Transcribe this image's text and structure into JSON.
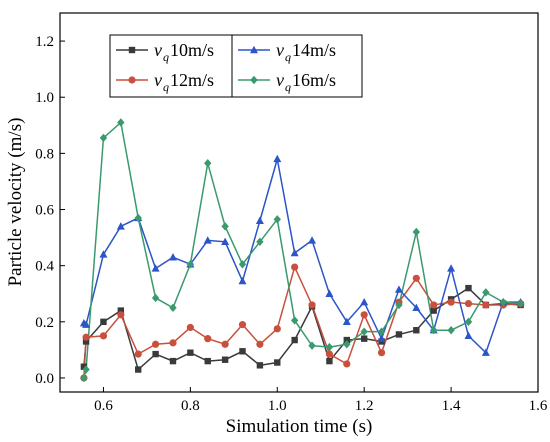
{
  "chart_data": {
    "type": "line",
    "xlabel": "Simulation time (s)",
    "ylabel": "Particle velocity (m/s)",
    "xlim": [
      0.5,
      1.6
    ],
    "ylim": [
      -0.05,
      1.3
    ],
    "xticks": [
      "0.6",
      "0.8",
      "1.0",
      "1.2",
      "1.4",
      "1.6"
    ],
    "yticks": [
      "0.0",
      "0.2",
      "0.4",
      "0.6",
      "0.8",
      "1.0",
      "1.2"
    ],
    "x": [
      0.555,
      0.56,
      0.6,
      0.64,
      0.68,
      0.72,
      0.76,
      0.8,
      0.84,
      0.88,
      0.92,
      0.96,
      1.0,
      1.04,
      1.08,
      1.12,
      1.16,
      1.2,
      1.24,
      1.28,
      1.32,
      1.36,
      1.4,
      1.44,
      1.48,
      1.52,
      1.56
    ],
    "series": [
      {
        "legend_prefix": "v",
        "legend_sub": "q",
        "legend_suffix": "10m/s",
        "color": "#3a3a3a",
        "marker": "square",
        "values": [
          0.04,
          0.13,
          0.2,
          0.24,
          0.03,
          0.085,
          0.06,
          0.09,
          0.06,
          0.065,
          0.095,
          0.045,
          0.055,
          0.135,
          0.255,
          0.06,
          0.135,
          0.14,
          0.13,
          0.155,
          0.17,
          0.24,
          0.28,
          0.32,
          0.26,
          0.265,
          0.26
        ]
      },
      {
        "legend_prefix": "v",
        "legend_sub": "q",
        "legend_suffix": "12m/s",
        "color": "#c8503c",
        "marker": "circle",
        "values": [
          0.0,
          0.145,
          0.15,
          0.225,
          0.085,
          0.12,
          0.125,
          0.18,
          0.14,
          0.12,
          0.19,
          0.12,
          0.175,
          0.395,
          0.26,
          0.085,
          0.05,
          0.225,
          0.09,
          0.27,
          0.355,
          0.26,
          0.27,
          0.265,
          0.26,
          0.26,
          0.265
        ]
      },
      {
        "legend_prefix": "v",
        "legend_sub": "q",
        "legend_suffix": "14m/s",
        "color": "#2b55c8",
        "marker": "triangle",
        "values": [
          0.195,
          0.19,
          0.44,
          0.54,
          0.57,
          0.39,
          0.43,
          0.405,
          0.49,
          0.485,
          0.345,
          0.56,
          0.78,
          0.445,
          0.49,
          0.3,
          0.2,
          0.27,
          0.14,
          0.315,
          0.25,
          0.17,
          0.39,
          0.15,
          0.09,
          0.27,
          0.27
        ]
      },
      {
        "legend_prefix": "v",
        "legend_sub": "q",
        "legend_suffix": "16m/s",
        "color": "#3a9a6e",
        "marker": "diamond",
        "values": [
          0.0,
          0.03,
          0.855,
          0.91,
          0.57,
          0.285,
          0.25,
          0.405,
          0.765,
          0.54,
          0.405,
          0.485,
          0.565,
          0.205,
          0.115,
          0.11,
          0.12,
          0.165,
          0.165,
          0.26,
          0.52,
          0.17,
          0.17,
          0.2,
          0.305,
          0.27,
          0.265
        ]
      }
    ],
    "legend_layout": "two-column, top-left inside plot"
  }
}
